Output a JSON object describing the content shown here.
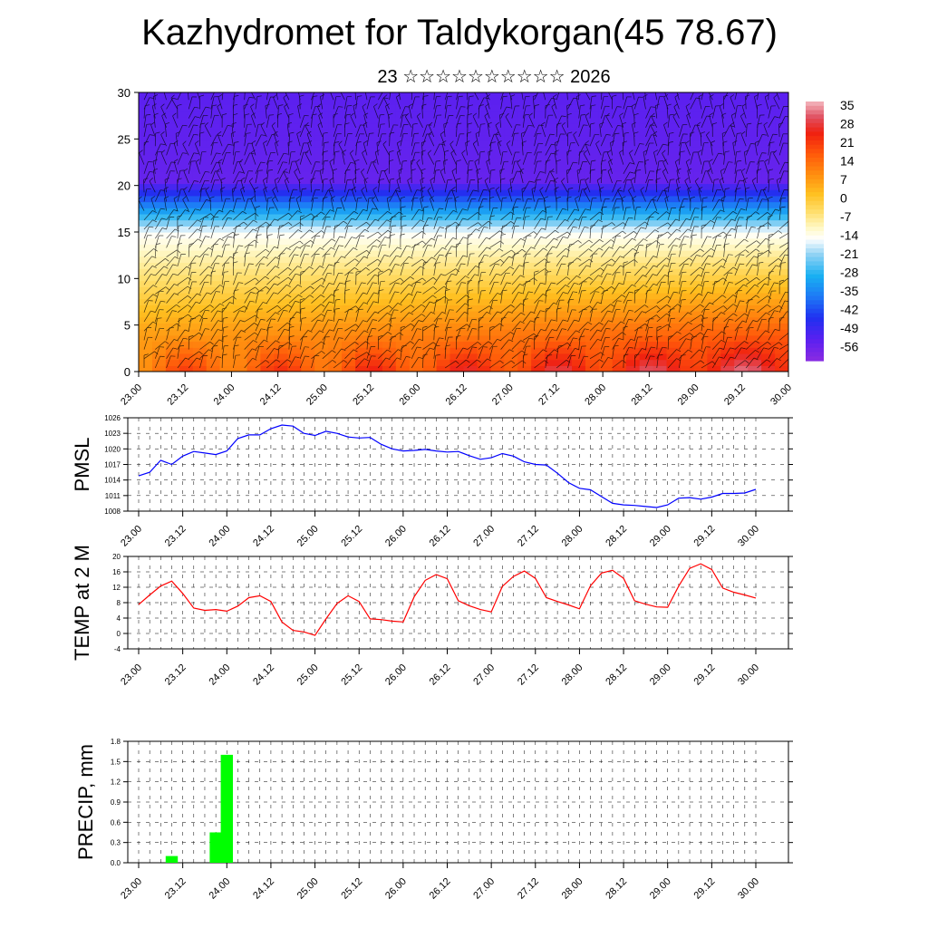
{
  "title": "Kazhydromet for Taldykorgan(45 78.67)",
  "subtitle": "23 ☆☆☆☆☆☆☆☆☆☆ 2026",
  "chart_data": [
    {
      "type": "heatmap",
      "title": "Temperature cross-section with wind barbs",
      "xlabel": "",
      "ylabel": "",
      "x_ticks": [
        "23.00",
        "23.12",
        "24.00",
        "24.12",
        "25.00",
        "25.12",
        "26.00",
        "26.12",
        "27.00",
        "27.12",
        "28.00",
        "28.12",
        "29.00",
        "29.12",
        "30.00"
      ],
      "ylim": [
        0,
        30
      ],
      "y_ticks": [
        0,
        5,
        10,
        15,
        20,
        25,
        30
      ],
      "colorbar": {
        "labels": [
          "35",
          "28",
          "21",
          "14",
          "7",
          "0",
          "-7",
          "-14",
          "-21",
          "-28",
          "-35",
          "-42",
          "-49",
          "-56"
        ],
        "range": [
          -60,
          38
        ],
        "stops": [
          {
            "value": -60,
            "color": "#8a2be2"
          },
          {
            "value": -52,
            "color": "#5a20f0"
          },
          {
            "value": -44,
            "color": "#2030f0"
          },
          {
            "value": -36,
            "color": "#1e78f5"
          },
          {
            "value": -28,
            "color": "#19b0f2"
          },
          {
            "value": -20,
            "color": "#8fd2f4"
          },
          {
            "value": -14,
            "color": "#ffffff"
          },
          {
            "value": -10,
            "color": "#fff9c8"
          },
          {
            "value": -4,
            "color": "#ffe070"
          },
          {
            "value": 3,
            "color": "#ffc020"
          },
          {
            "value": 10,
            "color": "#ff9010"
          },
          {
            "value": 18,
            "color": "#ff5a0a"
          },
          {
            "value": 26,
            "color": "#f02010"
          },
          {
            "value": 32,
            "color": "#e05060"
          },
          {
            "value": 38,
            "color": "#f4b8c0"
          }
        ]
      }
    },
    {
      "type": "line",
      "ylabel": "PMSL",
      "x_ticks": [
        "23.00",
        "23.12",
        "24.00",
        "24.12",
        "25.00",
        "25.12",
        "26.00",
        "26.12",
        "27.00",
        "27.12",
        "28.00",
        "28.12",
        "29.00",
        "29.12",
        "30.00"
      ],
      "ylim": [
        1008,
        1026
      ],
      "y_ticks": [
        1008,
        1011,
        1014,
        1017,
        1020,
        1023,
        1026
      ],
      "color": "#0000ff",
      "series": [
        {
          "name": "PMSL",
          "x": [
            0,
            0.125,
            0.25,
            0.375,
            0.5,
            0.625,
            0.75,
            0.875,
            1,
            1.125,
            1.25,
            1.375,
            1.5,
            1.625,
            1.75,
            1.875,
            2,
            2.125,
            2.25,
            2.375,
            2.5,
            2.625,
            2.75,
            2.875,
            3,
            3.125,
            3.25,
            3.375,
            3.5,
            3.625,
            3.75,
            3.875,
            4,
            4.125,
            4.25,
            4.375,
            4.5,
            4.625,
            4.75,
            4.875,
            5,
            5.125,
            5.25,
            5.375,
            5.5,
            5.625,
            5.75,
            5.875,
            6,
            6.125,
            6.25,
            6.375,
            6.5,
            6.625,
            6.75,
            6.875,
            7
          ],
          "values": [
            1014.8,
            1015.5,
            1017.8,
            1017,
            1018.6,
            1019.5,
            1019.2,
            1018.9,
            1019.6,
            1022,
            1022.7,
            1022.7,
            1023.9,
            1024.6,
            1024.4,
            1023,
            1022.6,
            1023.4,
            1023,
            1022.3,
            1022.1,
            1022.2,
            1020.9,
            1020,
            1019.6,
            1019.7,
            1019.9,
            1019.6,
            1019.4,
            1019.5,
            1018.7,
            1018,
            1018.3,
            1019.1,
            1018.6,
            1017.5,
            1017,
            1016.9,
            1015.3,
            1013.5,
            1012.4,
            1012.1,
            1010.8,
            1009.5,
            1009.2,
            1009.1,
            1008.9,
            1008.7,
            1009.2,
            1010.5,
            1010.6,
            1010.3,
            1010.7,
            1011.4,
            1011.4,
            1011.5,
            1012.2
          ]
        }
      ]
    },
    {
      "type": "line",
      "ylabel": "TEMP at 2 M",
      "x_ticks": [
        "23.00",
        "23.12",
        "24.00",
        "24.12",
        "25.00",
        "25.12",
        "26.00",
        "26.12",
        "27.00",
        "27.12",
        "28.00",
        "28.12",
        "29.00",
        "29.12",
        "30.00"
      ],
      "ylim": [
        -4,
        20
      ],
      "y_ticks": [
        -4,
        0,
        4,
        8,
        12,
        16,
        20
      ],
      "color": "#ff0000",
      "series": [
        {
          "name": "TEMP",
          "x": [
            0,
            0.125,
            0.25,
            0.375,
            0.5,
            0.625,
            0.75,
            0.875,
            1,
            1.125,
            1.25,
            1.375,
            1.5,
            1.625,
            1.75,
            1.875,
            2,
            2.125,
            2.25,
            2.375,
            2.5,
            2.625,
            2.75,
            2.875,
            3,
            3.125,
            3.25,
            3.375,
            3.5,
            3.625,
            3.75,
            3.875,
            4,
            4.125,
            4.25,
            4.375,
            4.5,
            4.625,
            4.75,
            4.875,
            5,
            5.125,
            5.25,
            5.375,
            5.5,
            5.625,
            5.75,
            5.875,
            6,
            6.125,
            6.25,
            6.375,
            6.5,
            6.625,
            6.75,
            6.875,
            7
          ],
          "values": [
            7.5,
            10,
            12.3,
            13.6,
            10.4,
            6.6,
            6,
            6.2,
            5.8,
            7.1,
            9.3,
            9.8,
            8.3,
            3,
            0.8,
            0.4,
            -0.5,
            3.8,
            7.8,
            9.8,
            8.3,
            3.8,
            3.6,
            3.2,
            3,
            9.5,
            13.8,
            15.3,
            14.2,
            8.5,
            7.2,
            6.2,
            5.6,
            12.2,
            14.8,
            16.2,
            14.3,
            9.3,
            8.3,
            7.4,
            6.4,
            12.4,
            15.7,
            16.4,
            14.3,
            8.5,
            7.6,
            6.9,
            6.8,
            12.3,
            16.9,
            18.1,
            16.6,
            11.8,
            10.7,
            10,
            9.2
          ]
        }
      ]
    },
    {
      "type": "bar",
      "ylabel": "PRECIP, mm",
      "x_ticks": [
        "23.00",
        "23.12",
        "24.00",
        "24.12",
        "25.00",
        "25.12",
        "26.00",
        "26.12",
        "27.00",
        "27.12",
        "28.00",
        "28.12",
        "29.00",
        "29.12",
        "30.00"
      ],
      "ylim": [
        0,
        1.8
      ],
      "y_ticks": [
        "0.0",
        "0.3",
        "0.6",
        "0.9",
        "1.2",
        "1.5",
        "1.8"
      ],
      "color": "#00ff00",
      "series": [
        {
          "name": "PRECIP",
          "x": [
            0.375,
            0.875,
            1.0
          ],
          "values": [
            0.1,
            0.45,
            1.6
          ]
        }
      ]
    }
  ]
}
